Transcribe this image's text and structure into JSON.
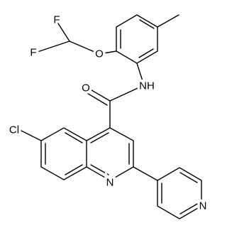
{
  "atoms": [
    "F",
    "F",
    "O",
    "NH",
    "O",
    "Cl",
    "N",
    "N"
  ]
}
